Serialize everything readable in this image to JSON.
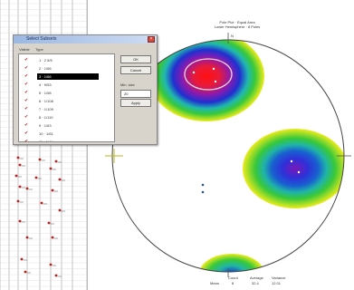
{
  "dialog": {
    "title": "Select Subsets",
    "close_glyph": "×",
    "header": {
      "col1": "Visible",
      "col2": "Type"
    },
    "rows": [
      {
        "label": "1 · 2 5/5",
        "selected": false
      },
      {
        "label": "2 · 1/66",
        "selected": false
      },
      {
        "label": "3 · 1/66",
        "selected": true
      },
      {
        "label": "4 · 9/53",
        "selected": false
      },
      {
        "label": "5 · 1/58",
        "selected": false
      },
      {
        "label": "6 · 1/108",
        "selected": false
      },
      {
        "label": "7 · 1/109",
        "selected": false
      },
      {
        "label": "8 · 1/110",
        "selected": false
      },
      {
        "label": "9 · 1/63",
        "selected": false
      },
      {
        "label": "10 · 1/61",
        "selected": false
      },
      {
        "label": "11 · 1/41",
        "selected": false
      }
    ],
    "buttons": {
      "ok": "OK",
      "cancel": "Cancel",
      "apply": "Apply"
    },
    "min_label": "Min. size",
    "min_value": "20"
  },
  "stereonet": {
    "title_line1": "Pole Plot · Equal Area",
    "title_line2": "Lower Hemisphere · 8 Poles",
    "north_label": "N",
    "legend": {
      "headers": [
        "Count",
        "Average",
        "Variance"
      ],
      "row_label": "Mean",
      "values": [
        "8",
        "32.4",
        "12.01"
      ]
    }
  },
  "colors": {
    "contour_outer": "#ecec1a",
    "contour_mid": "#38c83a",
    "contour_inner": "#1428c8",
    "contour_core": "#ff1010",
    "contour_purple": "#8a1ab0",
    "check": "#c01818"
  }
}
